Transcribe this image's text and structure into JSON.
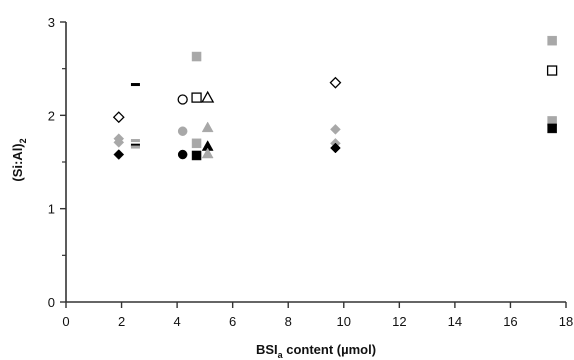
{
  "chart_data": {
    "type": "scatter",
    "title": "",
    "xlabel_main": "BSI",
    "xlabel_sub": "a",
    "xlabel_rest": " content (µmol)",
    "ylabel_main": "(Si:Al)",
    "ylabel_sub": "2",
    "xlim": [
      0,
      18
    ],
    "ylim": [
      0,
      3
    ],
    "x_ticks": [
      0,
      2,
      4,
      6,
      8,
      10,
      12,
      14,
      16,
      18
    ],
    "y_ticks_labeled": [
      0,
      1,
      2,
      3
    ],
    "y_minor_ticks": [
      0.5,
      1.5,
      2.5
    ],
    "grid": false,
    "legend": "none",
    "colors": {
      "black": "#000000",
      "gray": "#a8a8a8",
      "axis": "#333333"
    },
    "points": [
      {
        "x": 1.9,
        "y": 1.98,
        "marker": "diamond-open",
        "color": "black"
      },
      {
        "x": 1.9,
        "y": 1.75,
        "marker": "diamond",
        "color": "gray"
      },
      {
        "x": 1.9,
        "y": 1.71,
        "marker": "diamond",
        "color": "gray"
      },
      {
        "x": 1.9,
        "y": 1.58,
        "marker": "diamond",
        "color": "black"
      },
      {
        "x": 2.5,
        "y": 2.33,
        "marker": "dash",
        "color": "black"
      },
      {
        "x": 2.5,
        "y": 1.73,
        "marker": "dash",
        "color": "gray"
      },
      {
        "x": 2.5,
        "y": 1.68,
        "marker": "dash",
        "color": "black"
      },
      {
        "x": 2.5,
        "y": 1.66,
        "marker": "dash",
        "color": "gray"
      },
      {
        "x": 4.2,
        "y": 2.17,
        "marker": "circle-open",
        "color": "black"
      },
      {
        "x": 4.2,
        "y": 1.83,
        "marker": "circle",
        "color": "gray"
      },
      {
        "x": 4.2,
        "y": 1.58,
        "marker": "circle",
        "color": "black"
      },
      {
        "x": 4.7,
        "y": 2.63,
        "marker": "square",
        "color": "gray"
      },
      {
        "x": 4.7,
        "y": 2.19,
        "marker": "square-open",
        "color": "black"
      },
      {
        "x": 4.7,
        "y": 1.7,
        "marker": "square",
        "color": "gray"
      },
      {
        "x": 4.7,
        "y": 1.57,
        "marker": "square",
        "color": "black"
      },
      {
        "x": 5.1,
        "y": 2.19,
        "marker": "triangle-open",
        "color": "black"
      },
      {
        "x": 5.1,
        "y": 1.87,
        "marker": "triangle",
        "color": "gray"
      },
      {
        "x": 5.1,
        "y": 1.67,
        "marker": "triangle",
        "color": "black"
      },
      {
        "x": 5.1,
        "y": 1.59,
        "marker": "triangle",
        "color": "gray"
      },
      {
        "x": 9.7,
        "y": 2.35,
        "marker": "diamond-open",
        "color": "black"
      },
      {
        "x": 9.7,
        "y": 1.85,
        "marker": "diamond",
        "color": "gray"
      },
      {
        "x": 9.7,
        "y": 1.7,
        "marker": "diamond",
        "color": "gray"
      },
      {
        "x": 9.7,
        "y": 1.65,
        "marker": "diamond",
        "color": "black"
      },
      {
        "x": 17.5,
        "y": 2.8,
        "marker": "square",
        "color": "gray"
      },
      {
        "x": 17.5,
        "y": 2.48,
        "marker": "square-open",
        "color": "black"
      },
      {
        "x": 17.5,
        "y": 1.94,
        "marker": "square",
        "color": "gray"
      },
      {
        "x": 17.5,
        "y": 1.86,
        "marker": "square",
        "color": "black"
      }
    ]
  }
}
